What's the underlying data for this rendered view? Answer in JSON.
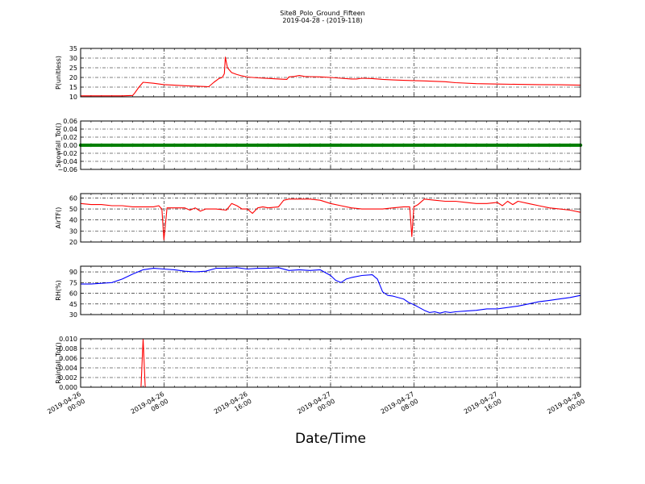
{
  "title": "Site8_Polo_Ground_Fifteen",
  "subtitle": "2019-04-28 - (2019-118)",
  "xlabel": "Date/Time",
  "x_tick_labels": [
    [
      "2019-04-26",
      "00:00"
    ],
    [
      "2019-04-26",
      "08:00"
    ],
    [
      "2019-04-26",
      "16:00"
    ],
    [
      "2019-04-27",
      "00:00"
    ],
    [
      "2019-04-27",
      "08:00"
    ],
    [
      "2019-04-27",
      "16:00"
    ],
    [
      "2019-04-28",
      "00:00"
    ]
  ],
  "chart_data": [
    {
      "type": "line",
      "ylabel": "P(unitless)",
      "color": "#ff0000",
      "ylim": [
        10,
        35
      ],
      "yticks": [
        10,
        15,
        20,
        25,
        30,
        35
      ],
      "ytick_labels": [
        "10",
        "15",
        "20",
        "25",
        "30",
        "35"
      ],
      "xlim_hours": [
        0,
        48
      ],
      "grid": true,
      "x": [
        0,
        2,
        4,
        5,
        5.2,
        5.6,
        6,
        7,
        8,
        9,
        10,
        11,
        12,
        12.3,
        12.8,
        13.3,
        13.6,
        13.8,
        13.9,
        14.1,
        14.5,
        15,
        15.5,
        16,
        17,
        18,
        19,
        19.8,
        20,
        20.5,
        21,
        21.5,
        22,
        23,
        24,
        25,
        26,
        26.5,
        27,
        28,
        29,
        30,
        31,
        33,
        35,
        36,
        38,
        40,
        42,
        44,
        46,
        48
      ],
      "y": [
        10.5,
        10.5,
        10.5,
        10.7,
        12,
        15,
        17.5,
        17,
        16.3,
        16,
        15.7,
        15.5,
        15.3,
        15.2,
        17.5,
        19.5,
        20,
        22,
        30.5,
        25,
        22.5,
        21.5,
        20.8,
        20.2,
        19.8,
        19.5,
        19.2,
        19,
        20.3,
        20.5,
        21,
        20.5,
        20.4,
        20.3,
        20,
        19.6,
        19.2,
        19.2,
        19.6,
        19.4,
        19,
        18.7,
        18.5,
        18.2,
        17.8,
        17.3,
        16.8,
        16.6,
        16.4,
        16.3,
        16.2,
        16
      ]
    },
    {
      "type": "scatter",
      "ylabel": "Snowfall_Tot()",
      "color": "#008000",
      "ylim": [
        -0.06,
        0.06
      ],
      "yticks": [
        -0.06,
        -0.04,
        -0.02,
        0,
        0.02,
        0.04,
        0.06
      ],
      "ytick_labels": [
        "−0.06",
        "−0.04",
        "−0.02",
        "0.00",
        "0.02",
        "0.04",
        "0.06"
      ],
      "xlim_hours": [
        0,
        48
      ],
      "grid": true,
      "x": [
        0,
        1,
        2,
        3,
        4,
        5,
        6,
        7,
        8,
        9,
        10,
        11,
        12,
        13,
        14,
        15,
        16,
        17,
        18,
        19,
        20,
        21,
        22,
        23,
        24,
        25,
        26,
        27,
        28,
        29,
        30,
        31,
        32,
        33,
        34,
        35,
        36,
        37,
        38,
        39,
        40,
        41,
        42,
        43,
        44,
        45,
        46,
        47,
        48
      ],
      "y": [
        0,
        0,
        0,
        0,
        0,
        0,
        0,
        0,
        0,
        0,
        0,
        0,
        0,
        0,
        0,
        0,
        0,
        0,
        0,
        0,
        0,
        0,
        0,
        0,
        0,
        0,
        0,
        0,
        0,
        0,
        0,
        0,
        0,
        0,
        0,
        0,
        0,
        0,
        0,
        0,
        0,
        0,
        0,
        0,
        0,
        0,
        0,
        0,
        0
      ]
    },
    {
      "type": "line",
      "ylabel": "AirTF()",
      "color": "#ff0000",
      "ylim": [
        20,
        64
      ],
      "yticks": [
        20,
        30,
        40,
        50,
        60
      ],
      "ytick_labels": [
        "20",
        "30",
        "40",
        "50",
        "60"
      ],
      "xlim_hours": [
        0,
        48
      ],
      "grid": true,
      "x": [
        0,
        1,
        2,
        3,
        4,
        5,
        6,
        7,
        7.5,
        7.8,
        8,
        8.3,
        9,
        10,
        10.5,
        11,
        11.5,
        12,
        13,
        14,
        14.5,
        15,
        15.5,
        16,
        16.5,
        17,
        17.5,
        18,
        19,
        19.5,
        20,
        21,
        22,
        23,
        24,
        25,
        26,
        27,
        28,
        29,
        30,
        31,
        31.6,
        31.8,
        32,
        32.4,
        33,
        34,
        35,
        36,
        37,
        38,
        39,
        40,
        40.5,
        41,
        41.5,
        42,
        43,
        44,
        45,
        46,
        47,
        48
      ],
      "y": [
        55,
        54,
        54,
        53,
        53,
        52,
        52,
        52,
        53,
        50,
        22,
        51,
        51,
        51,
        49,
        51,
        48,
        50,
        50,
        49,
        55,
        53,
        50,
        50,
        46,
        51,
        52,
        51,
        52,
        58,
        59,
        59,
        59,
        58,
        55,
        53,
        51,
        50,
        50,
        50,
        51,
        52,
        52,
        25,
        52,
        54,
        59,
        58,
        57,
        57,
        56,
        55,
        55,
        56,
        53,
        57,
        54,
        57,
        55,
        53,
        51,
        50,
        49,
        47
      ]
    },
    {
      "type": "line",
      "ylabel": "RH(%)",
      "color": "#0000ff",
      "ylim": [
        30,
        98
      ],
      "yticks": [
        30,
        45,
        60,
        75,
        90
      ],
      "ytick_labels": [
        "30",
        "45",
        "60",
        "75",
        "90"
      ],
      "xlim_hours": [
        0,
        48
      ],
      "grid": true,
      "x": [
        0,
        1,
        2,
        3,
        4,
        5,
        6,
        7,
        8,
        9,
        10,
        11,
        12,
        13,
        14,
        15,
        16,
        17,
        18,
        19,
        20,
        21,
        22,
        23,
        24,
        24.5,
        25,
        25.5,
        26,
        27,
        28,
        28.5,
        29,
        29.5,
        30,
        31,
        31.5,
        32,
        32.5,
        33,
        33.5,
        34,
        34.5,
        35,
        35.5,
        36,
        37,
        38,
        39,
        40,
        41,
        42,
        43,
        44,
        45,
        46,
        47,
        48
      ],
      "y": [
        73,
        73,
        74,
        75,
        80,
        87,
        93,
        95,
        94,
        93,
        91,
        90,
        91,
        95,
        95,
        96,
        94,
        95,
        95,
        96,
        92,
        93,
        92,
        93,
        85,
        78,
        75,
        80,
        82,
        85,
        86,
        80,
        62,
        57,
        56,
        52,
        47,
        44,
        40,
        36,
        33,
        34,
        32,
        34,
        33,
        34,
        35,
        36,
        38,
        38,
        40,
        42,
        45,
        48,
        50,
        52,
        54,
        57
      ]
    },
    {
      "type": "line",
      "ylabel": "Rainfall_Tot()",
      "color": "#ff0000",
      "ylim": [
        0,
        0.01
      ],
      "yticks": [
        0,
        0.002,
        0.004,
        0.006,
        0.008,
        0.01
      ],
      "ytick_labels": [
        "0.000",
        "0.002",
        "0.004",
        "0.006",
        "0.008",
        "0.010"
      ],
      "xlim_hours": [
        0,
        48
      ],
      "grid": true,
      "x": [
        0,
        5.8,
        6.0,
        6.2,
        48
      ],
      "y": [
        0,
        0,
        0.01,
        0,
        0
      ]
    }
  ]
}
